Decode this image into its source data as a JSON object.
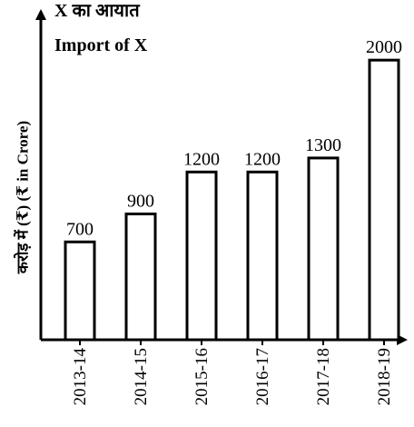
{
  "chart_data": {
    "type": "bar",
    "title": "X का आयात",
    "subtitle": "Import of X",
    "ylabel": "करोड़ में (₹)    (₹ in Crore)",
    "xlabel": "",
    "categories": [
      "2013-14",
      "2014-15",
      "2015-16",
      "2016-17",
      "2017-18",
      "2018-19"
    ],
    "values": [
      700,
      900,
      1200,
      1200,
      1300,
      2000
    ],
    "ylim": [
      0,
      2300
    ],
    "grid": false,
    "bar_fill": "#ffffff",
    "bar_stroke": "#000000",
    "axis_color": "#000000"
  }
}
